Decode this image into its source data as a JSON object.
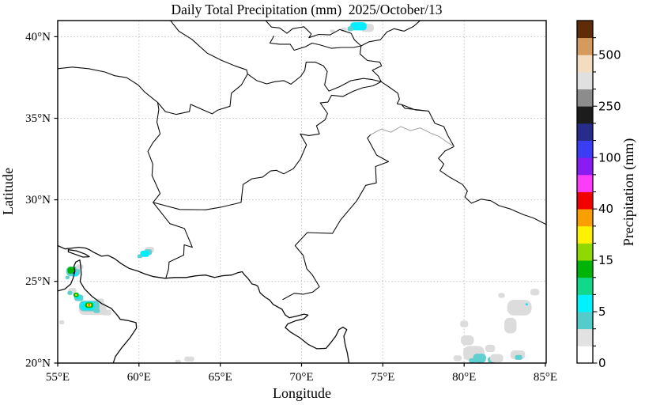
{
  "title": "Daily Total Precipitation (mm)  2025/October/13",
  "axes": {
    "xlabel": "Longitude",
    "ylabel": "Latitude",
    "x_ticks": [
      {
        "value": 55,
        "label": "55°E"
      },
      {
        "value": 60,
        "label": "60°E"
      },
      {
        "value": 65,
        "label": "65°E"
      },
      {
        "value": 70,
        "label": "70°E"
      },
      {
        "value": 75,
        "label": "75°E"
      },
      {
        "value": 80,
        "label": "80°E"
      },
      {
        "value": 85,
        "label": "85°E"
      }
    ],
    "y_ticks": [
      {
        "value": 20,
        "label": "20°N"
      },
      {
        "value": 25,
        "label": "25°N"
      },
      {
        "value": 30,
        "label": "30°N"
      },
      {
        "value": 35,
        "label": "35°N"
      },
      {
        "value": 40,
        "label": "40°N"
      }
    ],
    "grid": "dotted"
  },
  "colorbar": {
    "label": "Precipitation (mm)",
    "tick_labels": [
      "0",
      "5",
      "15",
      "40",
      "100",
      "250",
      "500"
    ],
    "tick_boundary_indices": [
      0,
      3,
      6,
      9,
      12,
      15,
      18
    ],
    "colors_bottom_to_top": [
      "#ffffff",
      "#e2e2e2",
      "#55cbcb",
      "#00f2ff",
      "#10d98c",
      "#00b407",
      "#8fd900",
      "#fff200",
      "#f9a000",
      "#f10000",
      "#fb3dfb",
      "#8a1bf2",
      "#3b3df5",
      "#272b8a",
      "#1c1c1c",
      "#8c8c8c",
      "#e0e0e0",
      "#f3dcc0",
      "#d59b5e",
      "#5e2c07"
    ]
  },
  "chart_data": {
    "type": "heatmap",
    "subtype": "geographic-precipitation-map",
    "title": "Daily Total Precipitation (mm)",
    "date": "2025/October/13",
    "lon_range": [
      55,
      85
    ],
    "lat_range": [
      20,
      41
    ],
    "units": "mm",
    "legend_levels_labeled": [
      0,
      5,
      15,
      40,
      100,
      250,
      500
    ],
    "palette": {
      "gray": "#dcdcdc",
      "pale": "#5fcfcf",
      "cyan": "#00eeff",
      "green": "#00b407",
      "yellow": "#ffee00",
      "red": "#f10000",
      "navy": "#272b8a"
    },
    "blobs": [
      {
        "lon": 57.15,
        "lat": 23.35,
        "w": 1.7,
        "h": 0.8,
        "color": "gray"
      },
      {
        "lon": 58.0,
        "lat": 23.1,
        "w": 0.6,
        "h": 0.35,
        "color": "gray"
      },
      {
        "lon": 57.6,
        "lat": 23.8,
        "w": 0.5,
        "h": 0.3,
        "color": "gray"
      },
      {
        "lon": 56.95,
        "lat": 23.5,
        "w": 1.25,
        "h": 0.65,
        "color": "pale"
      },
      {
        "lon": 57.4,
        "lat": 23.2,
        "w": 0.4,
        "h": 0.25,
        "color": "pale"
      },
      {
        "lon": 56.85,
        "lat": 23.5,
        "w": 0.85,
        "h": 0.5,
        "color": "cyan"
      },
      {
        "lon": 56.93,
        "lat": 23.55,
        "w": 0.5,
        "h": 0.33,
        "color": "green"
      },
      {
        "lon": 56.93,
        "lat": 23.56,
        "w": 0.27,
        "h": 0.18,
        "color": "yellow"
      },
      {
        "lon": 56.93,
        "lat": 23.56,
        "w": 0.12,
        "h": 0.09,
        "color": "red"
      },
      {
        "lon": 56.3,
        "lat": 24.0,
        "w": 0.55,
        "h": 0.4,
        "color": "pale"
      },
      {
        "lon": 56.25,
        "lat": 24.05,
        "w": 0.3,
        "h": 0.25,
        "color": "cyan"
      },
      {
        "lon": 56.13,
        "lat": 24.18,
        "w": 0.33,
        "h": 0.28,
        "color": "green"
      },
      {
        "lon": 56.13,
        "lat": 24.18,
        "w": 0.12,
        "h": 0.1,
        "color": "yellow"
      },
      {
        "lon": 55.9,
        "lat": 24.45,
        "w": 0.5,
        "h": 0.3,
        "color": "gray"
      },
      {
        "lon": 55.75,
        "lat": 24.3,
        "w": 0.3,
        "h": 0.25,
        "color": "pale"
      },
      {
        "lon": 55.25,
        "lat": 22.5,
        "w": 0.3,
        "h": 0.25,
        "color": "gray"
      },
      {
        "lon": 55.95,
        "lat": 25.62,
        "w": 0.85,
        "h": 0.6,
        "color": "pale"
      },
      {
        "lon": 55.85,
        "lat": 25.68,
        "w": 0.5,
        "h": 0.42,
        "color": "green"
      },
      {
        "lon": 56.05,
        "lat": 25.45,
        "w": 0.33,
        "h": 0.28,
        "color": "cyan"
      },
      {
        "lon": 55.98,
        "lat": 25.52,
        "w": 0.12,
        "h": 0.12,
        "color": "navy"
      },
      {
        "lon": 56.35,
        "lat": 25.9,
        "w": 0.45,
        "h": 0.3,
        "color": "gray"
      },
      {
        "lon": 55.6,
        "lat": 25.25,
        "w": 0.25,
        "h": 0.2,
        "color": "pale"
      },
      {
        "lon": 60.65,
        "lat": 26.95,
        "w": 0.55,
        "h": 0.35,
        "color": "gray"
      },
      {
        "lon": 60.55,
        "lat": 26.8,
        "w": 0.5,
        "h": 0.35,
        "color": "pale"
      },
      {
        "lon": 60.35,
        "lat": 26.7,
        "w": 0.55,
        "h": 0.38,
        "color": "cyan"
      },
      {
        "lon": 60.05,
        "lat": 26.55,
        "w": 0.3,
        "h": 0.22,
        "color": "pale"
      },
      {
        "lon": 74.05,
        "lat": 40.55,
        "w": 0.8,
        "h": 0.5,
        "color": "gray"
      },
      {
        "lon": 73.5,
        "lat": 40.65,
        "w": 1.0,
        "h": 0.5,
        "color": "cyan"
      },
      {
        "lon": 73.0,
        "lat": 40.5,
        "w": 0.35,
        "h": 0.3,
        "color": "pale"
      },
      {
        "lon": 72.6,
        "lat": 40.45,
        "w": 0.35,
        "h": 0.25,
        "color": "gray"
      },
      {
        "lon": 71.9,
        "lat": 40.35,
        "w": 0.3,
        "h": 0.2,
        "color": "gray"
      },
      {
        "lon": 80.6,
        "lat": 20.6,
        "w": 1.3,
        "h": 0.9,
        "color": "gray"
      },
      {
        "lon": 80.95,
        "lat": 20.3,
        "w": 0.8,
        "h": 0.55,
        "color": "pale"
      },
      {
        "lon": 81.7,
        "lat": 20.2,
        "w": 0.5,
        "h": 0.35,
        "color": "pale"
      },
      {
        "lon": 80.2,
        "lat": 21.4,
        "w": 0.8,
        "h": 0.6,
        "color": "gray"
      },
      {
        "lon": 81.6,
        "lat": 20.9,
        "w": 0.6,
        "h": 0.45,
        "color": "gray"
      },
      {
        "lon": 82.0,
        "lat": 20.3,
        "w": 0.8,
        "h": 0.5,
        "color": "gray"
      },
      {
        "lon": 83.3,
        "lat": 20.5,
        "w": 0.9,
        "h": 0.55,
        "color": "gray"
      },
      {
        "lon": 83.35,
        "lat": 20.35,
        "w": 0.45,
        "h": 0.3,
        "color": "pale"
      },
      {
        "lon": 82.85,
        "lat": 22.3,
        "w": 0.75,
        "h": 0.95,
        "color": "gray"
      },
      {
        "lon": 83.4,
        "lat": 23.4,
        "w": 1.5,
        "h": 0.95,
        "color": "gray"
      },
      {
        "lon": 83.85,
        "lat": 23.6,
        "w": 0.16,
        "h": 0.14,
        "color": "cyan"
      },
      {
        "lon": 82.3,
        "lat": 24.15,
        "w": 0.4,
        "h": 0.3,
        "color": "gray"
      },
      {
        "lon": 84.35,
        "lat": 24.35,
        "w": 0.55,
        "h": 0.4,
        "color": "gray"
      },
      {
        "lon": 80.0,
        "lat": 22.4,
        "w": 0.5,
        "h": 0.4,
        "color": "gray"
      },
      {
        "lon": 79.6,
        "lat": 20.3,
        "w": 0.5,
        "h": 0.35,
        "color": "gray"
      },
      {
        "lon": 80.5,
        "lat": 20.15,
        "w": 0.4,
        "h": 0.3,
        "color": "pale"
      },
      {
        "lon": 63.1,
        "lat": 20.25,
        "w": 0.6,
        "h": 0.3,
        "color": "gray"
      },
      {
        "lon": 62.4,
        "lat": 20.1,
        "w": 0.35,
        "h": 0.2,
        "color": "gray"
      }
    ]
  }
}
